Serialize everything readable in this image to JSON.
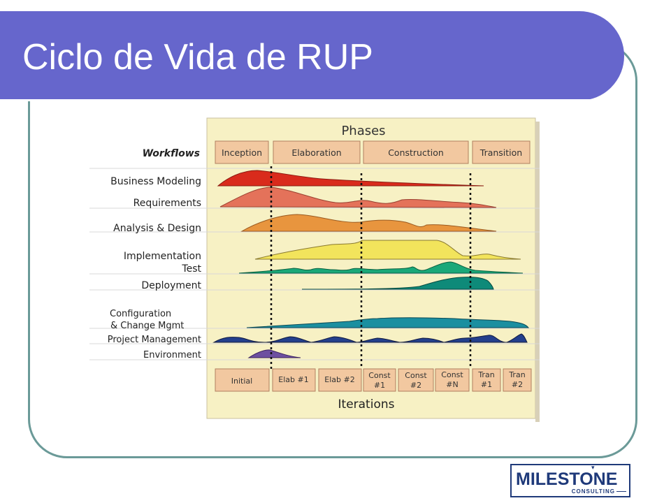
{
  "slide": {
    "title": "Ciclo de Vida de RUP"
  },
  "diagram": {
    "phases_title": "Phases",
    "workflows_title": "Workflows",
    "iterations_title": "Iterations",
    "phases": [
      "Inception",
      "Elaboration",
      "Construction",
      "Transition"
    ],
    "workflows": [
      {
        "label": "Business Modeling",
        "color": "#d92b1c"
      },
      {
        "label": "Requirements",
        "color": "#e4725a"
      },
      {
        "label": "Analysis & Design",
        "color": "#e8953e"
      },
      {
        "label": "Implementation",
        "color": "#f2e45c"
      },
      {
        "label": "Test",
        "color": "#1aa879"
      },
      {
        "label": "Deployment",
        "color": "#0e8a79"
      },
      {
        "label_lines": [
          "Configuration",
          "& Change Mgmt"
        ],
        "color": "#1b8fa0"
      },
      {
        "label": "Project Management",
        "color": "#233f8c"
      },
      {
        "label": "Environment",
        "color": "#6d4fa0"
      }
    ],
    "iterations": [
      {
        "lines": [
          "Initial"
        ]
      },
      {
        "lines": [
          "Elab #1"
        ]
      },
      {
        "lines": [
          "Elab #2"
        ]
      },
      {
        "lines": [
          "Const",
          "#1"
        ]
      },
      {
        "lines": [
          "Const",
          "#2"
        ]
      },
      {
        "lines": [
          "Const",
          "#N"
        ]
      },
      {
        "lines": [
          "Tran",
          "#1"
        ]
      },
      {
        "lines": [
          "Tran",
          "#2"
        ]
      }
    ],
    "colors": {
      "panel": "#f7f1c4",
      "box": "#f2c8a0",
      "box_border": "#b08060"
    }
  },
  "logo": {
    "word": "MILESTONE",
    "sub": "CONSULTING"
  }
}
